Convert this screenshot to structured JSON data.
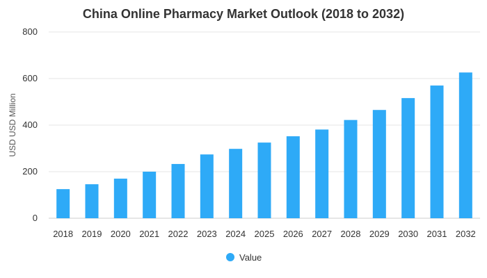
{
  "chart_data": {
    "type": "bar",
    "title": "China Online Pharmacy Market Outlook (2018 to 2032)",
    "xlabel": "",
    "ylabel": "USD USD Million",
    "categories": [
      "2018",
      "2019",
      "2020",
      "2021",
      "2022",
      "2023",
      "2024",
      "2025",
      "2026",
      "2027",
      "2028",
      "2029",
      "2030",
      "2031",
      "2032"
    ],
    "series": [
      {
        "name": "Value",
        "color": "#2eaaf7",
        "values": [
          125,
          146,
          170,
          200,
          233,
          274,
          298,
          325,
          352,
          381,
          422,
          465,
          516,
          570,
          626
        ]
      }
    ],
    "ylim": [
      0,
      800
    ],
    "yticks": [
      0,
      200,
      400,
      600,
      800
    ],
    "grid": true,
    "legend_position": "bottom"
  }
}
